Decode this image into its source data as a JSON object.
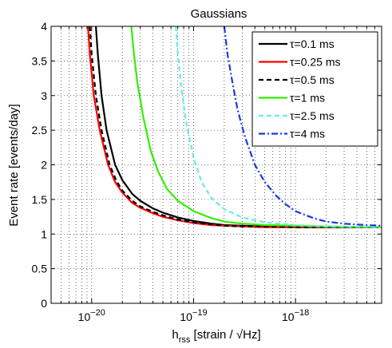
{
  "chart_data": {
    "type": "line",
    "title": "Gaussians",
    "xlabel": {
      "main": "h",
      "sub": "rss",
      "rest": " [strain / √Hz]"
    },
    "ylabel": "Event rate [events/day]",
    "xscale": "log",
    "xlim": [
      4e-21,
      7e-18
    ],
    "ylim": [
      0,
      4
    ],
    "xticks": [
      {
        "value": 1e-20,
        "base": "10",
        "exp": "−20"
      },
      {
        "value": 1e-19,
        "base": "10",
        "exp": "−19"
      },
      {
        "value": 1e-18,
        "base": "10",
        "exp": "−18"
      }
    ],
    "yticks": [
      {
        "value": 0,
        "label": "0"
      },
      {
        "value": 0.5,
        "label": "0.5"
      },
      {
        "value": 1,
        "label": "1"
      },
      {
        "value": 1.5,
        "label": "1.5"
      },
      {
        "value": 2,
        "label": "2"
      },
      {
        "value": 2.5,
        "label": "2.5"
      },
      {
        "value": 3,
        "label": "3"
      },
      {
        "value": 3.5,
        "label": "3.5"
      },
      {
        "value": 4,
        "label": "4"
      }
    ],
    "grid": true,
    "legend": "top-right",
    "series": [
      {
        "name": "τ=0.1 ms",
        "color": "#000000",
        "dash": "solid",
        "x": [
          1.1e-20,
          1.15e-20,
          1.25e-20,
          1.4e-20,
          1.7e-20,
          2e-20,
          2.5e-20,
          3e-20,
          4e-20,
          5e-20,
          7e-20,
          1e-19,
          1.5e-19,
          2e-19,
          3e-19,
          5e-19,
          1e-18,
          2e-18,
          7e-18
        ],
        "y": [
          4.0,
          3.6,
          3.0,
          2.5,
          2.0,
          1.78,
          1.58,
          1.48,
          1.37,
          1.31,
          1.24,
          1.19,
          1.15,
          1.13,
          1.12,
          1.11,
          1.1,
          1.1,
          1.1
        ]
      },
      {
        "name": "τ=0.25 ms",
        "color": "#ff0000",
        "dash": "solid",
        "x": [
          9.2e-21,
          9.6e-21,
          1.05e-20,
          1.2e-20,
          1.45e-20,
          1.7e-20,
          2e-20,
          2.5e-20,
          3e-20,
          4e-20,
          5e-20,
          7e-20,
          1e-19,
          1.5e-19,
          2e-19,
          3e-19,
          5e-19,
          1e-18,
          2e-18,
          7e-18
        ],
        "y": [
          4.0,
          3.6,
          3.0,
          2.5,
          2.0,
          1.75,
          1.6,
          1.45,
          1.38,
          1.3,
          1.25,
          1.2,
          1.16,
          1.13,
          1.12,
          1.11,
          1.1,
          1.1,
          1.1,
          1.1
        ]
      },
      {
        "name": "τ=0.5 ms",
        "color": "#000000",
        "dash": "dashed",
        "x": [
          9.6e-21,
          1e-20,
          1.1e-20,
          1.25e-20,
          1.5e-20,
          1.75e-20,
          2e-20,
          2.5e-20,
          3e-20,
          4e-20,
          5e-20,
          7e-20,
          1e-19,
          1.5e-19,
          2e-19,
          3e-19,
          5e-19,
          1e-18,
          2e-18,
          7e-18
        ],
        "y": [
          4.0,
          3.6,
          3.0,
          2.5,
          2.0,
          1.77,
          1.63,
          1.48,
          1.4,
          1.32,
          1.27,
          1.21,
          1.17,
          1.14,
          1.12,
          1.11,
          1.11,
          1.1,
          1.1,
          1.1
        ]
      },
      {
        "name": "τ=1 ms",
        "color": "#33ee00",
        "dash": "solid",
        "x": [
          2.45e-20,
          2.6e-20,
          2.8e-20,
          3.2e-20,
          3.8e-20,
          4.5e-20,
          5.5e-20,
          7e-20,
          1e-19,
          1.5e-19,
          2e-19,
          3e-19,
          5e-19,
          1e-18,
          2e-18,
          7e-18
        ],
        "y": [
          4.0,
          3.6,
          3.2,
          2.7,
          2.2,
          1.9,
          1.65,
          1.48,
          1.33,
          1.23,
          1.18,
          1.15,
          1.13,
          1.12,
          1.11,
          1.1
        ]
      },
      {
        "name": "τ=2.5 ms",
        "color": "#66eedd",
        "dash": "dashed",
        "x": [
          6.7e-20,
          7e-20,
          7.6e-20,
          8.5e-20,
          1e-19,
          1.2e-19,
          1.5e-19,
          2e-19,
          3e-19,
          5e-19,
          1e-18,
          2e-18,
          7e-18
        ],
        "y": [
          4.0,
          3.6,
          3.1,
          2.6,
          2.1,
          1.75,
          1.52,
          1.36,
          1.24,
          1.17,
          1.13,
          1.11,
          1.1
        ]
      },
      {
        "name": "τ=4 ms",
        "color": "#1a3adf",
        "dash": "dashdot",
        "x": [
          2e-19,
          2.15e-19,
          2.4e-19,
          2.7e-19,
          3.2e-19,
          4e-19,
          5e-19,
          6.5e-19,
          8e-19,
          1e-18,
          1.5e-18,
          2e-18,
          3e-18,
          5e-18,
          7e-18
        ],
        "y": [
          4.0,
          3.6,
          3.2,
          2.8,
          2.4,
          2.0,
          1.75,
          1.55,
          1.43,
          1.33,
          1.23,
          1.18,
          1.15,
          1.13,
          1.12
        ]
      }
    ]
  }
}
